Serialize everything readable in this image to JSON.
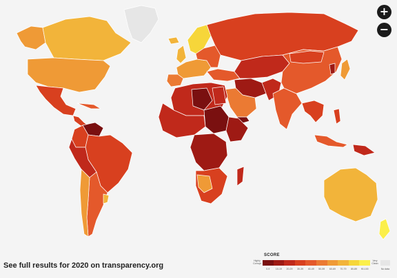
{
  "controls": {
    "zoom_in": "+",
    "zoom_out": "−"
  },
  "footer": {
    "text": "See full results for 2020 on transparency.org"
  },
  "legend": {
    "title": "SCORE",
    "left_end": "Highly Corrupt",
    "right_end": "Very Clean",
    "ranges": [
      "0-9",
      "10-19",
      "20-29",
      "30-39",
      "40-49",
      "50-59",
      "60-69",
      "70-79",
      "80-89",
      "90-100"
    ],
    "colors": [
      "#7a1010",
      "#9e1a14",
      "#c0291b",
      "#d8401f",
      "#e4592b",
      "#eb7a33",
      "#ef9a36",
      "#f2b43a",
      "#f6d63a",
      "#fbef4a"
    ],
    "no_data": "No data",
    "no_data_color": "#e6e6e6"
  }
}
